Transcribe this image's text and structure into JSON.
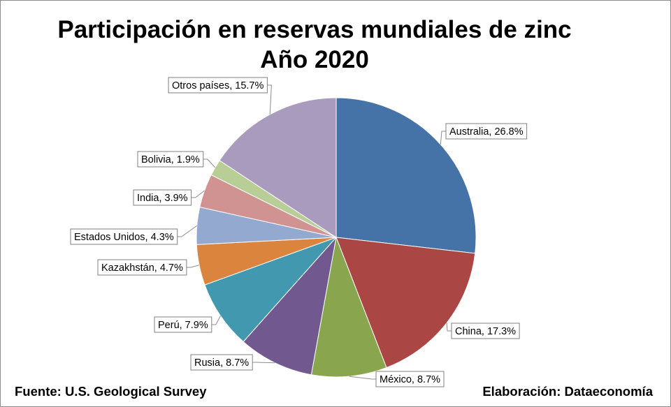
{
  "chart_data": {
    "type": "pie",
    "title": "Participación en reservas mundiales de zinc",
    "subtitle": "Año 2020",
    "slices": [
      {
        "label": "Australia",
        "value": 26.8,
        "color": "#4572a7",
        "text": "Australia, 26.8%"
      },
      {
        "label": "China",
        "value": 17.3,
        "color": "#aa4643",
        "text": "China, 17.3%"
      },
      {
        "label": "México",
        "value": 8.7,
        "color": "#89a54e",
        "text": "México, 8.7%"
      },
      {
        "label": "Rusia",
        "value": 8.7,
        "color": "#71588f",
        "text": "Rusia, 8.7%"
      },
      {
        "label": "Perú",
        "value": 7.9,
        "color": "#4198af",
        "text": "Perú, 7.9%"
      },
      {
        "label": "Kazakhstán",
        "value": 4.7,
        "color": "#db843d",
        "text": "Kazakhstán, 4.7%"
      },
      {
        "label": "Estados Unidos",
        "value": 4.3,
        "color": "#93a9cf",
        "text": "Estados Unidos, 4.3%"
      },
      {
        "label": "India",
        "value": 3.9,
        "color": "#d19392",
        "text": "India, 3.9%"
      },
      {
        "label": "Bolivia",
        "value": 1.9,
        "color": "#b9cd96",
        "text": "Bolivia, 1.9%"
      },
      {
        "label": "Otros países",
        "value": 15.7,
        "color": "#a99bbd",
        "text": "Otros países, 15.7%"
      }
    ]
  },
  "footer": {
    "source": "Fuente: U.S. Geological Survey",
    "credit": "Elaboración: Dataeconomía"
  }
}
